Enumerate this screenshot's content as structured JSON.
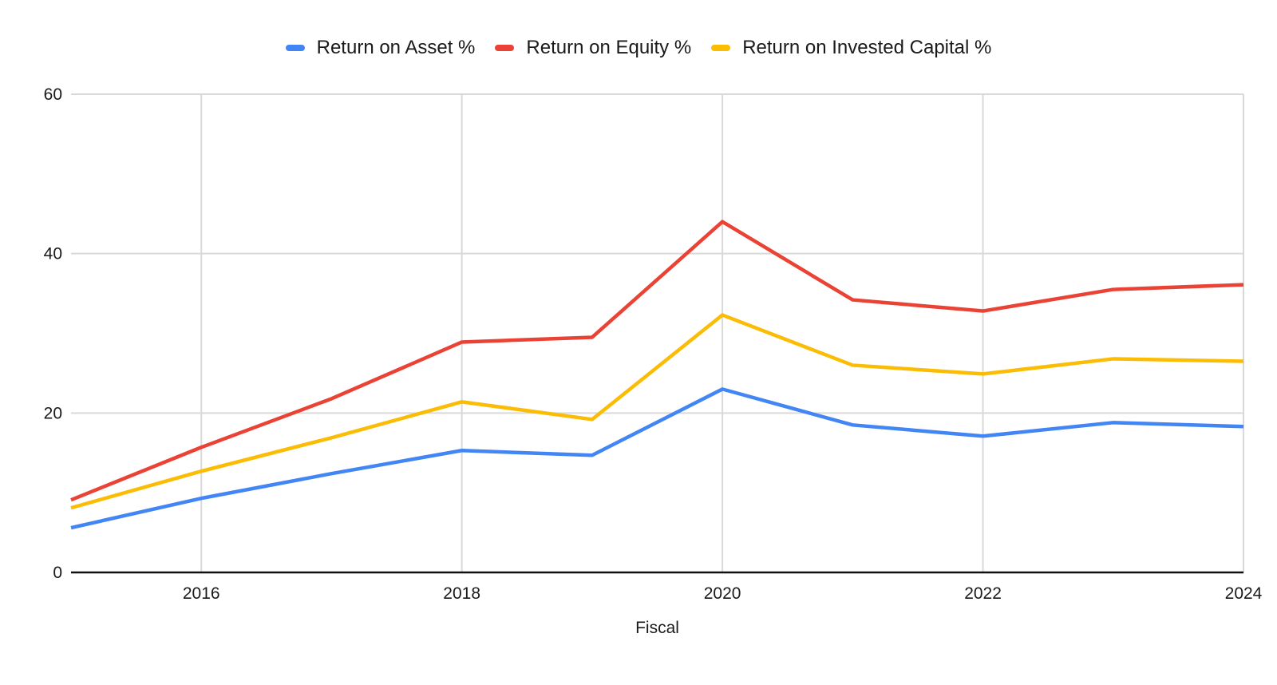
{
  "chart_data": {
    "type": "line",
    "title": "",
    "xlabel": "Fiscal",
    "ylabel": "",
    "x": [
      2015,
      2016,
      2017,
      2018,
      2019,
      2020,
      2021,
      2022,
      2023,
      2024
    ],
    "series": [
      {
        "name": "Return on Asset %",
        "color": "#4285F4",
        "values": [
          5.6,
          9.3,
          12.4,
          15.3,
          14.7,
          23.0,
          18.5,
          17.1,
          18.8,
          18.3
        ]
      },
      {
        "name": "Return on Equity %",
        "color": "#EA4335",
        "values": [
          9.1,
          15.7,
          21.8,
          28.9,
          29.5,
          44.0,
          34.2,
          32.8,
          35.5,
          36.1
        ]
      },
      {
        "name": "Return on Invested Capital %",
        "color": "#FBBC04",
        "values": [
          8.1,
          12.7,
          16.9,
          21.4,
          19.2,
          32.3,
          26.0,
          24.9,
          26.8,
          26.5
        ]
      }
    ],
    "xlim": [
      2015,
      2024
    ],
    "ylim": [
      0,
      60
    ],
    "yticks": [
      0,
      20,
      40,
      60
    ],
    "xticks": [
      2016,
      2018,
      2020,
      2022,
      2024
    ],
    "grid": true,
    "legend_position": "top",
    "colors": {
      "gridline": "#d9d9d9",
      "axis_line": "#111111",
      "tick_text": "#1a1a1a",
      "background": "#ffffff"
    }
  }
}
